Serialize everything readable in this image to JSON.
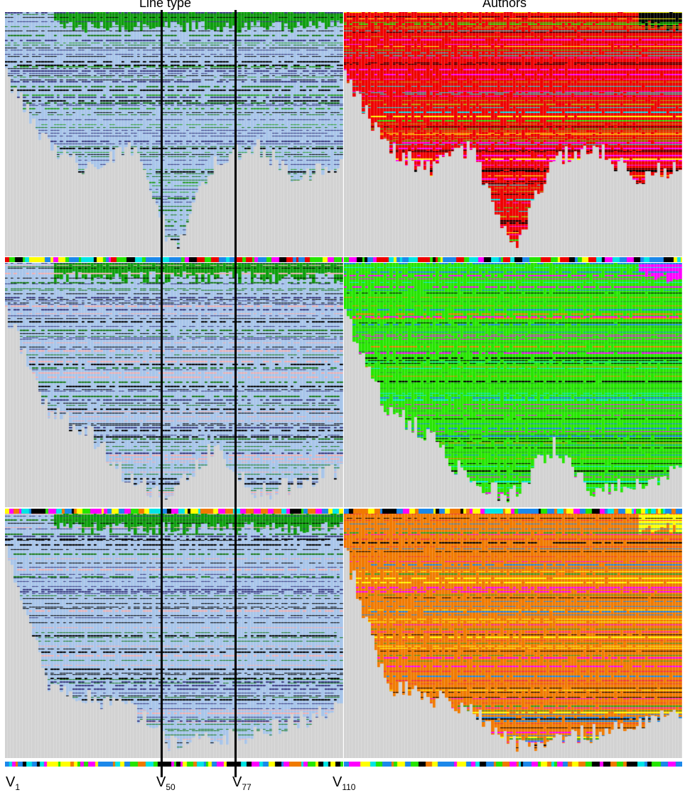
{
  "columns": [
    "Line type",
    "Authors"
  ],
  "x_labels": [
    {
      "base": "V",
      "sub": "1"
    },
    {
      "base": "V",
      "sub": "50"
    },
    {
      "base": "V",
      "sub": "77"
    },
    {
      "base": "V",
      "sub": "110"
    }
  ],
  "chart_data": {
    "type": "heatmap",
    "versions": 110,
    "markers": [
      50,
      77
    ],
    "rows": [
      {
        "line_type_base": "#a7c5ea",
        "author_base": "#ee0000",
        "author_accents": [
          "#000000",
          "#25e500",
          "#00e5e5",
          "#ffff00",
          "#ff00ff",
          "#b0a000"
        ],
        "line_accents": [
          "#1a7a1a",
          "#000000",
          "#3a3a80",
          "#2ca02c"
        ],
        "header": "#0d9e0d",
        "author_header": [
          "#ee0000",
          "#ff00ff",
          "#000000"
        ],
        "strip": [
          "#ee0000",
          "#000000",
          "#25e500",
          "#ffff00",
          "#00e5e5",
          "#ff00ff",
          "#1c88ea"
        ],
        "start_depth": [
          0.25,
          0.55,
          0.65,
          0.55,
          0.98,
          0.6,
          0.55,
          0.68,
          0.63
        ]
      },
      {
        "line_type_base": "#a7c5ea",
        "author_base": "#25e500",
        "author_accents": [
          "#000000",
          "#1c88ea",
          "#f07a00",
          "#00e5e5",
          "#ff00ff",
          "#2ca02c"
        ],
        "line_accents": [
          "#1a7a1a",
          "#000000",
          "#3a3a80",
          "#f3b0b0"
        ],
        "header": "#0d9e0d",
        "author_header": [
          "#25e500",
          "#ff00ff"
        ],
        "strip": [
          "#25e500",
          "#000000",
          "#1c88ea",
          "#f07a00",
          "#ff00ff",
          "#ffff00",
          "#00e5e5"
        ],
        "start_depth": [
          0.2,
          0.6,
          0.7,
          0.9,
          0.95,
          0.75,
          0.95,
          0.9,
          0.85
        ]
      },
      {
        "line_type_base": "#a7c5ea",
        "author_base": "#f07a00",
        "author_accents": [
          "#000000",
          "#1c88ea",
          "#2ca02c",
          "#ffff00",
          "#ff00ff",
          "#ef3b3b"
        ],
        "line_accents": [
          "#1a7a1a",
          "#000000",
          "#3a3a80",
          "#f3b0b0"
        ],
        "header": "#0d9e0d",
        "author_header": [
          "#f07a00",
          "#ff00ff",
          "#ffff00"
        ],
        "strip": [
          "#f07a00",
          "#000000",
          "#1c88ea",
          "#ffff00",
          "#ff00ff",
          "#25e500",
          "#00e5e5"
        ],
        "start_depth": [
          0.15,
          0.7,
          0.75,
          0.8,
          0.95,
          0.92,
          0.9,
          0.85,
          0.8
        ]
      }
    ]
  }
}
